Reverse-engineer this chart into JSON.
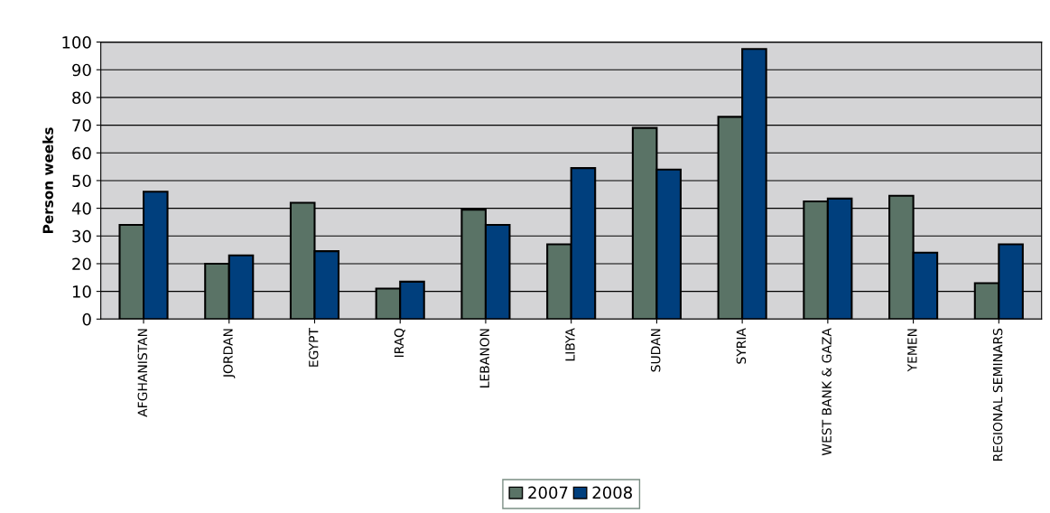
{
  "chart_data": {
    "type": "bar",
    "ylabel": "Person weeks",
    "categories": [
      "AFGHANISTAN",
      "JORDAN",
      "EGYPT",
      "IRAQ",
      "LEBANON",
      "LIBYA",
      "SUDAN",
      "SYRIA",
      "WEST BANK & GAZA",
      "YEMEN",
      "REGIONAL SEMINARS"
    ],
    "series": [
      {
        "name": "2007",
        "color": "#5a7366",
        "values": [
          34,
          20,
          42,
          11,
          39.5,
          27,
          69,
          73,
          42.5,
          44.5,
          13
        ]
      },
      {
        "name": "2008",
        "color": "#003f7d",
        "values": [
          46,
          23,
          24.5,
          13.5,
          34,
          54.5,
          54,
          97.5,
          43.5,
          24,
          27
        ]
      }
    ],
    "ylim": [
      0,
      100
    ],
    "yticks": [
      0,
      10,
      20,
      30,
      40,
      50,
      60,
      70,
      80,
      90,
      100
    ],
    "grid": "y",
    "legend": "bottom"
  }
}
